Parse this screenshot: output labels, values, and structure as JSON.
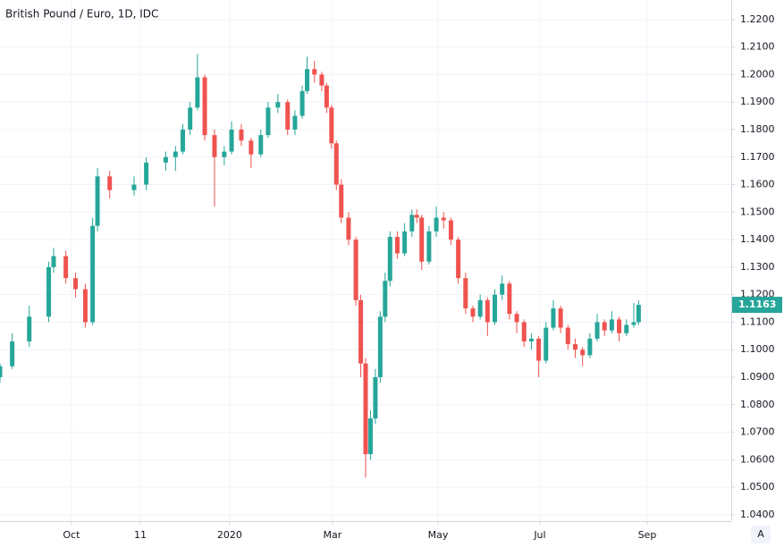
{
  "chart_data": {
    "type": "candlestick",
    "title": "British Pound / Euro, 1D, IDC",
    "x": [
      0,
      5,
      12,
      20,
      22,
      27,
      31,
      35,
      38,
      40,
      45,
      55,
      60,
      68,
      72,
      75,
      78,
      81,
      84,
      88,
      92,
      95,
      99,
      103,
      107,
      110,
      114,
      118,
      121,
      124,
      126,
      129,
      132,
      134,
      136,
      138,
      140,
      143,
      146,
      148,
      150,
      152,
      154,
      156,
      158,
      160,
      163,
      166,
      169,
      171,
      173,
      176,
      179,
      182,
      185,
      188,
      191,
      194,
      197,
      200,
      203,
      206,
      209,
      212,
      215,
      218,
      221,
      224,
      227,
      230,
      233,
      236,
      239,
      242,
      245,
      248,
      251,
      254,
      257,
      260,
      262
    ],
    "open": [
      1.09,
      1.094,
      1.103,
      1.112,
      1.13,
      1.134,
      1.126,
      1.122,
      1.11,
      1.145,
      1.163,
      1.158,
      1.16,
      1.168,
      1.17,
      1.172,
      1.18,
      1.188,
      1.199,
      1.178,
      1.17,
      1.172,
      1.18,
      1.176,
      1.171,
      1.178,
      1.188,
      1.19,
      1.18,
      1.185,
      1.194,
      1.202,
      1.2,
      1.196,
      1.188,
      1.175,
      1.16,
      1.148,
      1.14,
      1.118,
      1.095,
      1.062,
      1.075,
      1.09,
      1.112,
      1.125,
      1.141,
      1.135,
      1.143,
      1.149,
      1.148,
      1.132,
      1.143,
      1.148,
      1.147,
      1.14,
      1.126,
      1.115,
      1.112,
      1.118,
      1.11,
      1.12,
      1.124,
      1.113,
      1.11,
      1.103,
      1.104,
      1.096,
      1.108,
      1.115,
      1.108,
      1.102,
      1.1,
      1.098,
      1.104,
      1.11,
      1.107,
      1.111,
      1.106,
      1.109,
      1.11
    ],
    "high": [
      1.095,
      1.106,
      1.116,
      1.132,
      1.137,
      1.136,
      1.128,
      1.124,
      1.148,
      1.166,
      1.165,
      1.163,
      1.17,
      1.172,
      1.174,
      1.182,
      1.19,
      1.2075,
      1.2,
      1.18,
      1.174,
      1.183,
      1.182,
      1.177,
      1.18,
      1.19,
      1.193,
      1.191,
      1.187,
      1.196,
      1.2065,
      1.205,
      1.201,
      1.197,
      1.189,
      1.176,
      1.162,
      1.15,
      1.141,
      1.12,
      1.097,
      1.078,
      1.093,
      1.114,
      1.128,
      1.143,
      1.143,
      1.146,
      1.151,
      1.151,
      1.149,
      1.145,
      1.152,
      1.15,
      1.148,
      1.141,
      1.128,
      1.116,
      1.12,
      1.119,
      1.122,
      1.127,
      1.125,
      1.114,
      1.111,
      1.106,
      1.105,
      1.11,
      1.118,
      1.116,
      1.109,
      1.104,
      1.101,
      1.106,
      1.113,
      1.111,
      1.114,
      1.112,
      1.111,
      1.117,
      1.118
    ],
    "low": [
      1.088,
      1.093,
      1.101,
      1.11,
      1.128,
      1.124,
      1.119,
      1.108,
      1.109,
      1.143,
      1.155,
      1.156,
      1.158,
      1.165,
      1.165,
      1.171,
      1.178,
      1.187,
      1.176,
      1.152,
      1.167,
      1.171,
      1.174,
      1.166,
      1.17,
      1.177,
      1.186,
      1.178,
      1.178,
      1.184,
      1.193,
      1.197,
      1.194,
      1.186,
      1.173,
      1.158,
      1.146,
      1.138,
      1.116,
      1.09,
      1.0535,
      1.06,
      1.073,
      1.088,
      1.11,
      1.123,
      1.133,
      1.134,
      1.141,
      1.146,
      1.129,
      1.131,
      1.141,
      1.144,
      1.138,
      1.124,
      1.113,
      1.11,
      1.111,
      1.105,
      1.109,
      1.118,
      1.111,
      1.106,
      1.101,
      1.1,
      1.09,
      1.095,
      1.107,
      1.106,
      1.1,
      1.097,
      1.094,
      1.097,
      1.103,
      1.105,
      1.106,
      1.103,
      1.105,
      1.108,
      1.109
    ],
    "close": [
      1.094,
      1.103,
      1.112,
      1.13,
      1.134,
      1.126,
      1.122,
      1.11,
      1.145,
      1.163,
      1.158,
      1.16,
      1.168,
      1.17,
      1.172,
      1.18,
      1.188,
      1.199,
      1.178,
      1.17,
      1.172,
      1.18,
      1.176,
      1.171,
      1.178,
      1.188,
      1.19,
      1.18,
      1.185,
      1.194,
      1.202,
      1.2,
      1.196,
      1.188,
      1.175,
      1.16,
      1.148,
      1.14,
      1.118,
      1.095,
      1.062,
      1.075,
      1.09,
      1.112,
      1.125,
      1.141,
      1.135,
      1.143,
      1.149,
      1.148,
      1.132,
      1.143,
      1.148,
      1.147,
      1.14,
      1.126,
      1.115,
      1.112,
      1.118,
      1.11,
      1.12,
      1.124,
      1.113,
      1.11,
      1.103,
      1.104,
      1.096,
      1.108,
      1.115,
      1.108,
      1.102,
      1.1,
      1.098,
      1.104,
      1.11,
      1.107,
      1.111,
      1.106,
      1.109,
      1.11,
      1.1163
    ],
    "up_color": "#26a69a",
    "down_color": "#ef5350",
    "xlim": [
      0,
      300
    ],
    "xticks": [
      {
        "value": 29.3,
        "label": "Oct"
      },
      {
        "value": 57.6,
        "label": "11"
      },
      {
        "value": 94.2,
        "label": "2020"
      },
      {
        "value": 136.4,
        "label": "Mar"
      },
      {
        "value": 179.7,
        "label": "May"
      },
      {
        "value": 221.5,
        "label": "Jul"
      },
      {
        "value": 265.5,
        "label": "Sep"
      }
    ],
    "ylim": [
      1.0377,
      1.2271
    ],
    "yticks": [
      {
        "value": 1.04,
        "label": "1.0400"
      },
      {
        "value": 1.05,
        "label": "1.0500"
      },
      {
        "value": 1.06,
        "label": "1.0600"
      },
      {
        "value": 1.07,
        "label": "1.0700"
      },
      {
        "value": 1.08,
        "label": "1.0800"
      },
      {
        "value": 1.09,
        "label": "1.0900"
      },
      {
        "value": 1.1,
        "label": "1.1000"
      },
      {
        "value": 1.11,
        "label": "1.1100"
      },
      {
        "value": 1.12,
        "label": "1.1200"
      },
      {
        "value": 1.13,
        "label": "1.1300"
      },
      {
        "value": 1.14,
        "label": "1.1400"
      },
      {
        "value": 1.15,
        "label": "1.1500"
      },
      {
        "value": 1.16,
        "label": "1.1600"
      },
      {
        "value": 1.17,
        "label": "1.1700"
      },
      {
        "value": 1.18,
        "label": "1.1800"
      },
      {
        "value": 1.19,
        "label": "1.1900"
      },
      {
        "value": 1.2,
        "label": "1.2000"
      },
      {
        "value": 1.21,
        "label": "1.2100"
      },
      {
        "value": 1.22,
        "label": "1.2200"
      }
    ],
    "grid": true,
    "last_price": 1.1163,
    "auto_scale_button": "A"
  }
}
